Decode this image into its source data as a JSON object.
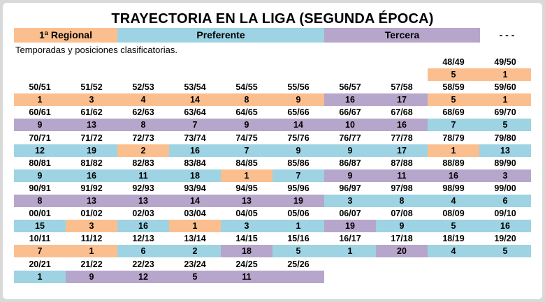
{
  "title": "TRAYECTORIA EN LA LIGA (SEGUNDA ÉPOCA)",
  "subtitle": "Temporadas y posiciones clasificatorias.",
  "colors": {
    "regional": "#fbbf8f",
    "preferente": "#9dd3e3",
    "tercera": "#b7a6cb"
  },
  "legend": {
    "regional": "1ª Regional",
    "preferente": "Preferente",
    "tercera": "Tercera",
    "none": "- - -"
  },
  "rows": [
    {
      "col_start": 8,
      "seasons": [
        {
          "season": "48/49",
          "pos": "5",
          "div": "regional"
        },
        {
          "season": "49/50",
          "pos": "1",
          "div": "regional"
        }
      ]
    },
    {
      "col_start": 0,
      "seasons": [
        {
          "season": "50/51",
          "pos": "1",
          "div": "regional"
        },
        {
          "season": "51/52",
          "pos": "3",
          "div": "regional"
        },
        {
          "season": "52/53",
          "pos": "4",
          "div": "regional"
        },
        {
          "season": "53/54",
          "pos": "14",
          "div": "regional"
        },
        {
          "season": "54/55",
          "pos": "8",
          "div": "regional"
        },
        {
          "season": "55/56",
          "pos": "9",
          "div": "regional"
        },
        {
          "season": "56/57",
          "pos": "16",
          "div": "tercera"
        },
        {
          "season": "57/58",
          "pos": "17",
          "div": "tercera"
        },
        {
          "season": "58/59",
          "pos": "5",
          "div": "regional"
        },
        {
          "season": "59/60",
          "pos": "1",
          "div": "regional"
        }
      ]
    },
    {
      "col_start": 0,
      "seasons": [
        {
          "season": "60/61",
          "pos": "9",
          "div": "tercera"
        },
        {
          "season": "61/62",
          "pos": "13",
          "div": "tercera"
        },
        {
          "season": "62/63",
          "pos": "8",
          "div": "tercera"
        },
        {
          "season": "63/64",
          "pos": "7",
          "div": "tercera"
        },
        {
          "season": "64/65",
          "pos": "9",
          "div": "tercera"
        },
        {
          "season": "65/66",
          "pos": "14",
          "div": "tercera"
        },
        {
          "season": "66/67",
          "pos": "10",
          "div": "tercera"
        },
        {
          "season": "67/68",
          "pos": "16",
          "div": "tercera"
        },
        {
          "season": "68/69",
          "pos": "7",
          "div": "preferente"
        },
        {
          "season": "69/70",
          "pos": "5",
          "div": "preferente"
        }
      ]
    },
    {
      "col_start": 0,
      "seasons": [
        {
          "season": "70/71",
          "pos": "12",
          "div": "preferente"
        },
        {
          "season": "71/72",
          "pos": "19",
          "div": "preferente"
        },
        {
          "season": "72/73",
          "pos": "2",
          "div": "regional"
        },
        {
          "season": "73/74",
          "pos": "16",
          "div": "preferente"
        },
        {
          "season": "74/75",
          "pos": "7",
          "div": "preferente"
        },
        {
          "season": "75/76",
          "pos": "9",
          "div": "preferente"
        },
        {
          "season": "76/77",
          "pos": "9",
          "div": "preferente"
        },
        {
          "season": "77/78",
          "pos": "17",
          "div": "preferente"
        },
        {
          "season": "78/79",
          "pos": "1",
          "div": "regional"
        },
        {
          "season": "79/80",
          "pos": "13",
          "div": "preferente"
        }
      ]
    },
    {
      "col_start": 0,
      "seasons": [
        {
          "season": "80/81",
          "pos": "9",
          "div": "preferente"
        },
        {
          "season": "81/82",
          "pos": "16",
          "div": "preferente"
        },
        {
          "season": "82/83",
          "pos": "11",
          "div": "preferente"
        },
        {
          "season": "83/84",
          "pos": "18",
          "div": "preferente"
        },
        {
          "season": "84/85",
          "pos": "1",
          "div": "regional"
        },
        {
          "season": "85/86",
          "pos": "7",
          "div": "preferente"
        },
        {
          "season": "86/87",
          "pos": "9",
          "div": "tercera"
        },
        {
          "season": "87/88",
          "pos": "11",
          "div": "tercera"
        },
        {
          "season": "88/89",
          "pos": "16",
          "div": "tercera"
        },
        {
          "season": "89/90",
          "pos": "3",
          "div": "tercera"
        }
      ]
    },
    {
      "col_start": 0,
      "seasons": [
        {
          "season": "90/91",
          "pos": "8",
          "div": "tercera"
        },
        {
          "season": "91/92",
          "pos": "13",
          "div": "tercera"
        },
        {
          "season": "92/93",
          "pos": "13",
          "div": "tercera"
        },
        {
          "season": "93/94",
          "pos": "14",
          "div": "tercera"
        },
        {
          "season": "94/95",
          "pos": "13",
          "div": "tercera"
        },
        {
          "season": "95/96",
          "pos": "19",
          "div": "tercera"
        },
        {
          "season": "96/97",
          "pos": "3",
          "div": "preferente"
        },
        {
          "season": "97/98",
          "pos": "8",
          "div": "preferente"
        },
        {
          "season": "98/99",
          "pos": "4",
          "div": "preferente"
        },
        {
          "season": "99/00",
          "pos": "6",
          "div": "preferente"
        }
      ]
    },
    {
      "col_start": 0,
      "seasons": [
        {
          "season": "00/01",
          "pos": "15",
          "div": "preferente"
        },
        {
          "season": "01/02",
          "pos": "3",
          "div": "regional"
        },
        {
          "season": "02/03",
          "pos": "16",
          "div": "preferente"
        },
        {
          "season": "03/04",
          "pos": "1",
          "div": "regional"
        },
        {
          "season": "04/05",
          "pos": "3",
          "div": "preferente"
        },
        {
          "season": "05/06",
          "pos": "1",
          "div": "preferente"
        },
        {
          "season": "06/07",
          "pos": "19",
          "div": "tercera"
        },
        {
          "season": "07/08",
          "pos": "9",
          "div": "preferente"
        },
        {
          "season": "08/09",
          "pos": "5",
          "div": "preferente"
        },
        {
          "season": "09/10",
          "pos": "16",
          "div": "preferente"
        }
      ]
    },
    {
      "col_start": 0,
      "seasons": [
        {
          "season": "10/11",
          "pos": "7",
          "div": "regional"
        },
        {
          "season": "11/12",
          "pos": "1",
          "div": "regional"
        },
        {
          "season": "12/13",
          "pos": "6",
          "div": "preferente"
        },
        {
          "season": "13/14",
          "pos": "2",
          "div": "preferente"
        },
        {
          "season": "14/15",
          "pos": "18",
          "div": "tercera"
        },
        {
          "season": "15/16",
          "pos": "5",
          "div": "preferente"
        },
        {
          "season": "16/17",
          "pos": "1",
          "div": "preferente"
        },
        {
          "season": "17/18",
          "pos": "20",
          "div": "tercera"
        },
        {
          "season": "18/19",
          "pos": "4",
          "div": "preferente"
        },
        {
          "season": "19/20",
          "pos": "5",
          "div": "preferente"
        }
      ]
    },
    {
      "col_start": 0,
      "seasons": [
        {
          "season": "20/21",
          "pos": "1",
          "div": "preferente"
        },
        {
          "season": "21/22",
          "pos": "9",
          "div": "tercera"
        },
        {
          "season": "22/23",
          "pos": "12",
          "div": "tercera"
        },
        {
          "season": "23/24",
          "pos": "5",
          "div": "tercera"
        },
        {
          "season": "24/25",
          "pos": "11",
          "div": "tercera"
        },
        {
          "season": "25/26",
          "pos": "",
          "div": "tercera"
        }
      ]
    }
  ]
}
